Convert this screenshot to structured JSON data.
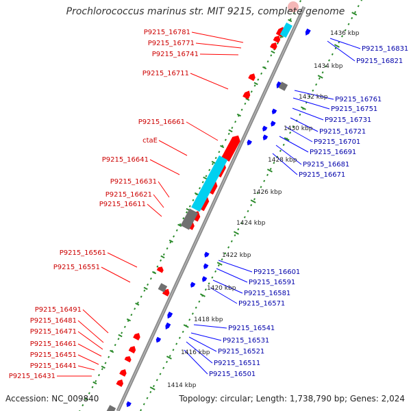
{
  "title": "Prochlorococcus marinus str. MIT 9215, complete genome",
  "accession": "Accession: NC_009840",
  "summary": "Topology: circular; Length: 1,738,790 bp; Genes: 2,024",
  "colors": {
    "forward_gene": "#ff0000",
    "reverse_gene": "#0000ff",
    "rna_gene": "#00d0f0",
    "other_feature": "#707070",
    "backbone": "#8a8a8a",
    "tick": "#2a8a2a",
    "forward_label": "#cc0000",
    "reverse_label": "#0000aa"
  },
  "kbp_labels": [
    "1436 kbp",
    "1434 kbp",
    "1432 kbp",
    "1430 kbp",
    "1428 kbp",
    "1426 kbp",
    "1424 kbp",
    "1422 kbp",
    "1420 kbp",
    "1418 kbp",
    "1416 kbp",
    "1414 kbp"
  ],
  "forward_labels": [
    "P9215_16781",
    "P9215_16771",
    "P9215_16741",
    "P9215_16711",
    "P9215_16661",
    "ctaE",
    "P9215_16641",
    "P9215_16631",
    "P9215_16621",
    "P9215_16611",
    "P9215_16561",
    "P9215_16551",
    "P9215_16491",
    "P9215_16481",
    "P9215_16471",
    "P9215_16461",
    "P9215_16451",
    "P9215_16441",
    "P9215_16431"
  ],
  "reverse_labels": [
    "P9215_16831",
    "P9215_16821",
    "P9215_16761",
    "P9215_16751",
    "P9215_16731",
    "P9215_16721",
    "P9215_16701",
    "P9215_16691",
    "P9215_16681",
    "P9215_16671",
    "P9215_16601",
    "P9215_16591",
    "P9215_16581",
    "P9215_16571",
    "P9215_16541",
    "P9215_16531",
    "P9215_16521",
    "P9215_16511",
    "P9215_16501"
  ]
}
